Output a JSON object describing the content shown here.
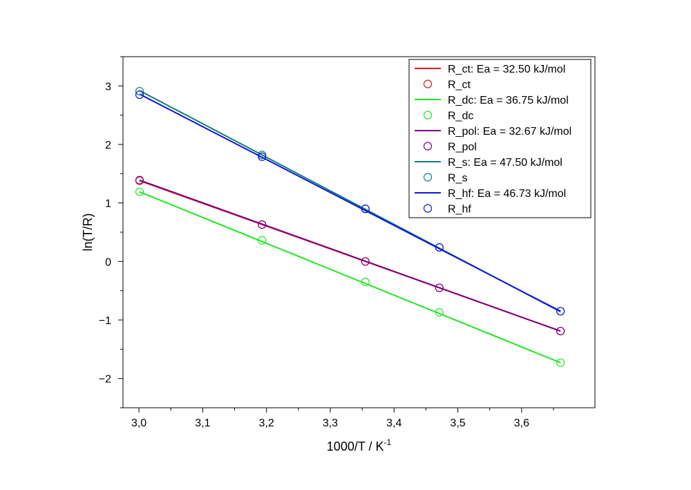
{
  "chart_data": {
    "type": "scatter",
    "xlabel": "1000/T / K",
    "xlabel_sup": "-1",
    "ylabel": "ln(T/R)",
    "xlim": [
      2.975,
      3.715
    ],
    "ylim": [
      -2.5,
      3.5
    ],
    "xticks": [
      3.0,
      3.1,
      3.2,
      3.3,
      3.4,
      3.5,
      3.6
    ],
    "xtick_labels": [
      "3,0",
      "3,1",
      "3,2",
      "3,3",
      "3,4",
      "3,5",
      "3,6"
    ],
    "yticks": [
      -2,
      -1,
      0,
      1,
      2,
      3
    ],
    "ytick_labels": [
      "−2",
      "−1",
      "0",
      "1",
      "2",
      "3"
    ],
    "legend_position": "top-right",
    "series": [
      {
        "name": "R_ct",
        "fit_label": "R_ct: Ea = 32.50 kJ/mol",
        "color": "#e8141c",
        "x": [
          3.001,
          3.193,
          3.355,
          3.471,
          3.661
        ],
        "y": [
          1.38,
          0.63,
          0.0,
          -0.45,
          -1.19
        ],
        "fit": [
          [
            3.001,
            1.38
          ],
          [
            3.661,
            -1.19
          ]
        ]
      },
      {
        "name": "R_dc",
        "fit_label": "R_dc: Ea = 36.75 kJ/mol",
        "color": "#1ee81e",
        "x": [
          3.001,
          3.193,
          3.355,
          3.471,
          3.661
        ],
        "y": [
          1.19,
          0.36,
          -0.35,
          -0.87,
          -1.73
        ],
        "fit": [
          [
            3.001,
            1.19
          ],
          [
            3.661,
            -1.73
          ]
        ]
      },
      {
        "name": "R_pol",
        "fit_label": "R_pol: Ea = 32.67 kJ/mol",
        "color": "#800080",
        "x": [
          3.001,
          3.193,
          3.355,
          3.471,
          3.661
        ],
        "y": [
          1.39,
          0.63,
          0.0,
          -0.45,
          -1.19
        ],
        "fit": [
          [
            3.001,
            1.39
          ],
          [
            3.661,
            -1.19
          ]
        ]
      },
      {
        "name": "R_s",
        "fit_label": "R_s: Ea = 47.50 kJ/mol",
        "color": "#0a7f7f",
        "x": [
          3.001,
          3.193,
          3.355,
          3.471,
          3.661
        ],
        "y": [
          2.91,
          1.82,
          0.9,
          0.24,
          -0.85
        ],
        "fit": [
          [
            3.001,
            2.92
          ],
          [
            3.661,
            -0.86
          ]
        ]
      },
      {
        "name": "R_hf",
        "fit_label": "R_hf: Ea = 46.73 kJ/mol",
        "color": "#1414d8",
        "x": [
          3.001,
          3.193,
          3.355,
          3.471,
          3.661
        ],
        "y": [
          2.85,
          1.79,
          0.9,
          0.24,
          -0.85
        ],
        "fit": [
          [
            3.001,
            2.86
          ],
          [
            3.661,
            -0.85
          ]
        ]
      }
    ]
  }
}
